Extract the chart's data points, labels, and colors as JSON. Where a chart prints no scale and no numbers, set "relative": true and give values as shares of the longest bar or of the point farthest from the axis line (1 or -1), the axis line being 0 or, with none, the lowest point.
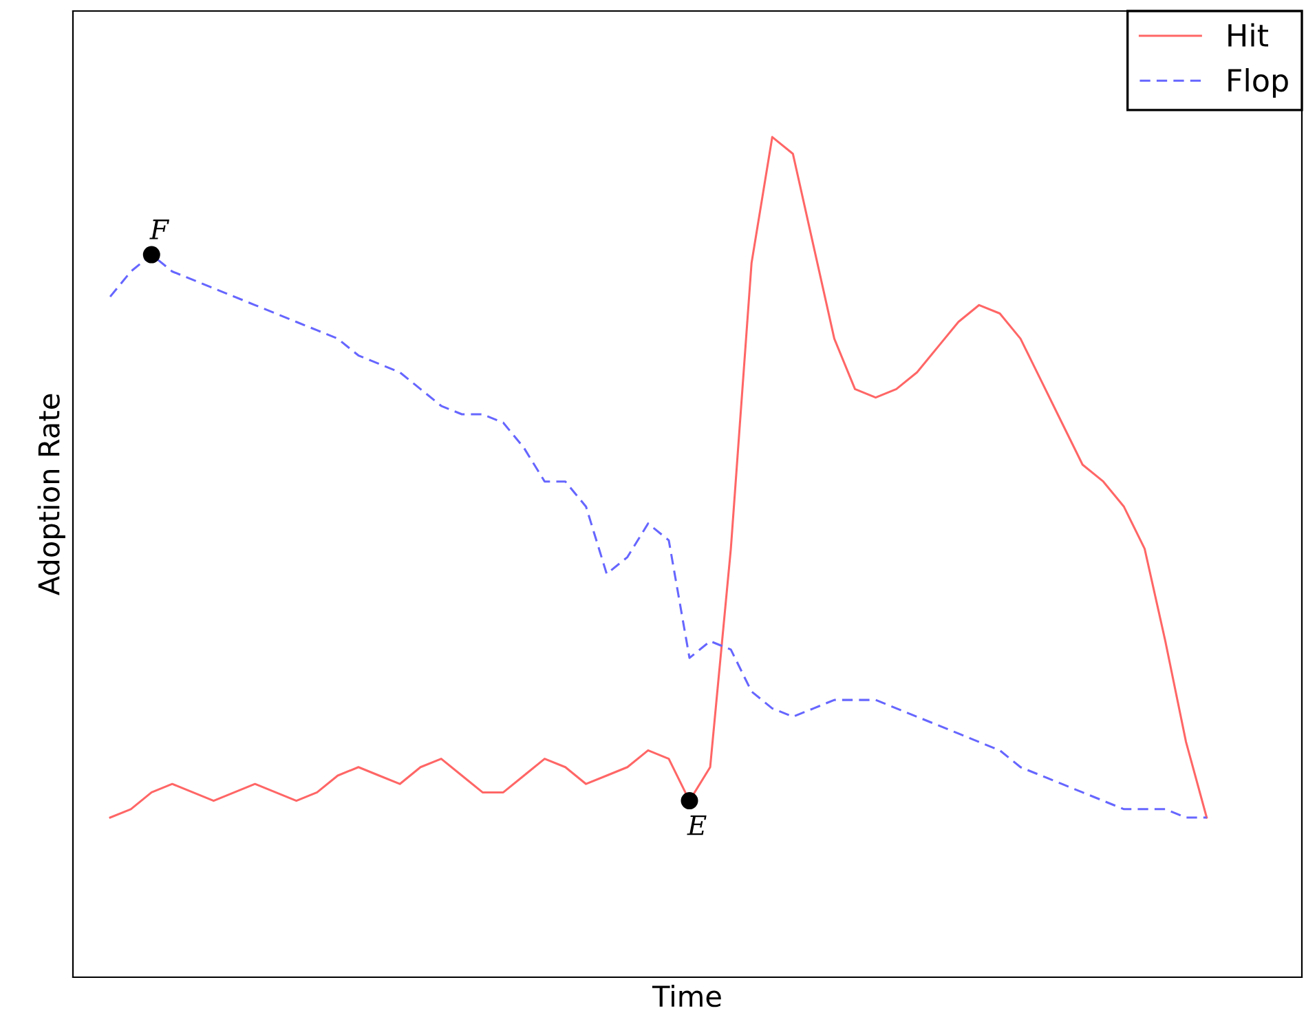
{
  "chart_data": {
    "type": "line",
    "relative": true,
    "xlabel": "Time",
    "ylabel": "Adoption Rate",
    "categories": [
      null,
      null,
      null,
      null,
      null,
      null,
      null,
      null,
      null,
      null,
      null,
      null,
      null,
      null,
      null,
      null,
      null,
      null,
      null,
      null,
      null,
      null,
      null,
      null,
      null,
      null,
      null,
      null,
      null,
      null,
      null,
      null,
      null,
      null,
      null,
      null,
      null,
      null,
      null,
      null,
      null,
      null,
      null,
      null,
      null,
      null,
      null,
      null,
      null,
      null,
      null,
      null,
      null,
      null
    ],
    "series": [
      {
        "name": "Hit",
        "color": "#ff6666",
        "line_style": "solid",
        "values": [
          0.19,
          0.2,
          0.22,
          0.23,
          0.22,
          0.21,
          0.22,
          0.23,
          0.22,
          0.21,
          0.22,
          0.24,
          0.25,
          0.24,
          0.23,
          0.25,
          0.26,
          0.24,
          0.22,
          0.22,
          0.24,
          0.26,
          0.25,
          0.23,
          0.24,
          0.25,
          0.27,
          0.26,
          0.21,
          0.25,
          0.51,
          0.85,
          1.0,
          0.98,
          0.87,
          0.76,
          0.7,
          0.69,
          0.7,
          0.72,
          0.75,
          0.78,
          0.8,
          0.79,
          0.76,
          0.71,
          0.66,
          0.61,
          0.59,
          0.56,
          0.51,
          0.4,
          0.28,
          0.19
        ]
      },
      {
        "name": "Flop",
        "color": "#6666ff",
        "line_style": "dashed",
        "values": [
          0.81,
          0.84,
          0.86,
          0.84,
          0.83,
          0.82,
          0.81,
          0.8,
          0.79,
          0.78,
          0.77,
          0.76,
          0.74,
          0.73,
          0.72,
          0.7,
          0.68,
          0.67,
          0.67,
          0.66,
          0.63,
          0.59,
          0.59,
          0.56,
          0.48,
          0.5,
          0.54,
          0.52,
          0.38,
          0.4,
          0.39,
          0.34,
          0.32,
          0.31,
          0.32,
          0.33,
          0.33,
          0.33,
          0.32,
          0.31,
          0.3,
          0.29,
          0.28,
          0.27,
          0.25,
          0.24,
          0.23,
          0.22,
          0.21,
          0.2,
          0.2,
          0.2,
          0.19,
          0.19
        ]
      }
    ],
    "annotations": [
      {
        "text": "F",
        "y": 0.86
      },
      {
        "text": "E",
        "y": 0.21
      }
    ],
    "legend": "top right"
  }
}
